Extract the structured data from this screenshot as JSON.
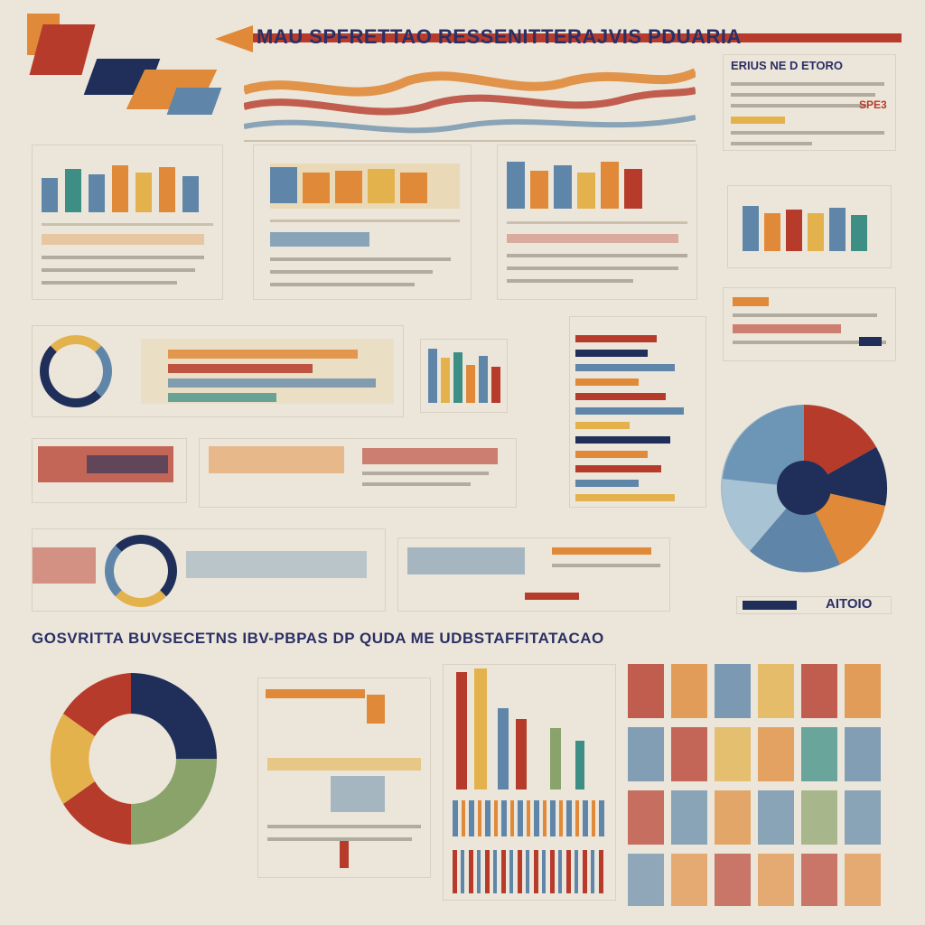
{
  "headlines": {
    "top": "MAU SPFRETTAO RESSENITTERAJVIS PDUARIA",
    "middle": "GOSVRITTA BUVSECETNS IBV-PBPAS DP QUDA ME UDBSTAFFITATACAO",
    "right_top": "ERIUS NE D ETORO",
    "bottom_right_badge": "AITOIO",
    "small_right": "SPE3"
  },
  "colors": {
    "navy": "#1f2f5a",
    "red": "#b73b2b",
    "orange": "#e08a39",
    "mustard": "#e3b24c",
    "blue": "#5f86a8",
    "teal": "#3d8f86",
    "green": "#8aa36a",
    "cream": "#ece6da"
  },
  "icons": {
    "title_arrow": "arrow-icon",
    "wave": "wave-icon",
    "people": "people-icon",
    "donut": "donut-icon",
    "pie": "pie-icon"
  }
}
